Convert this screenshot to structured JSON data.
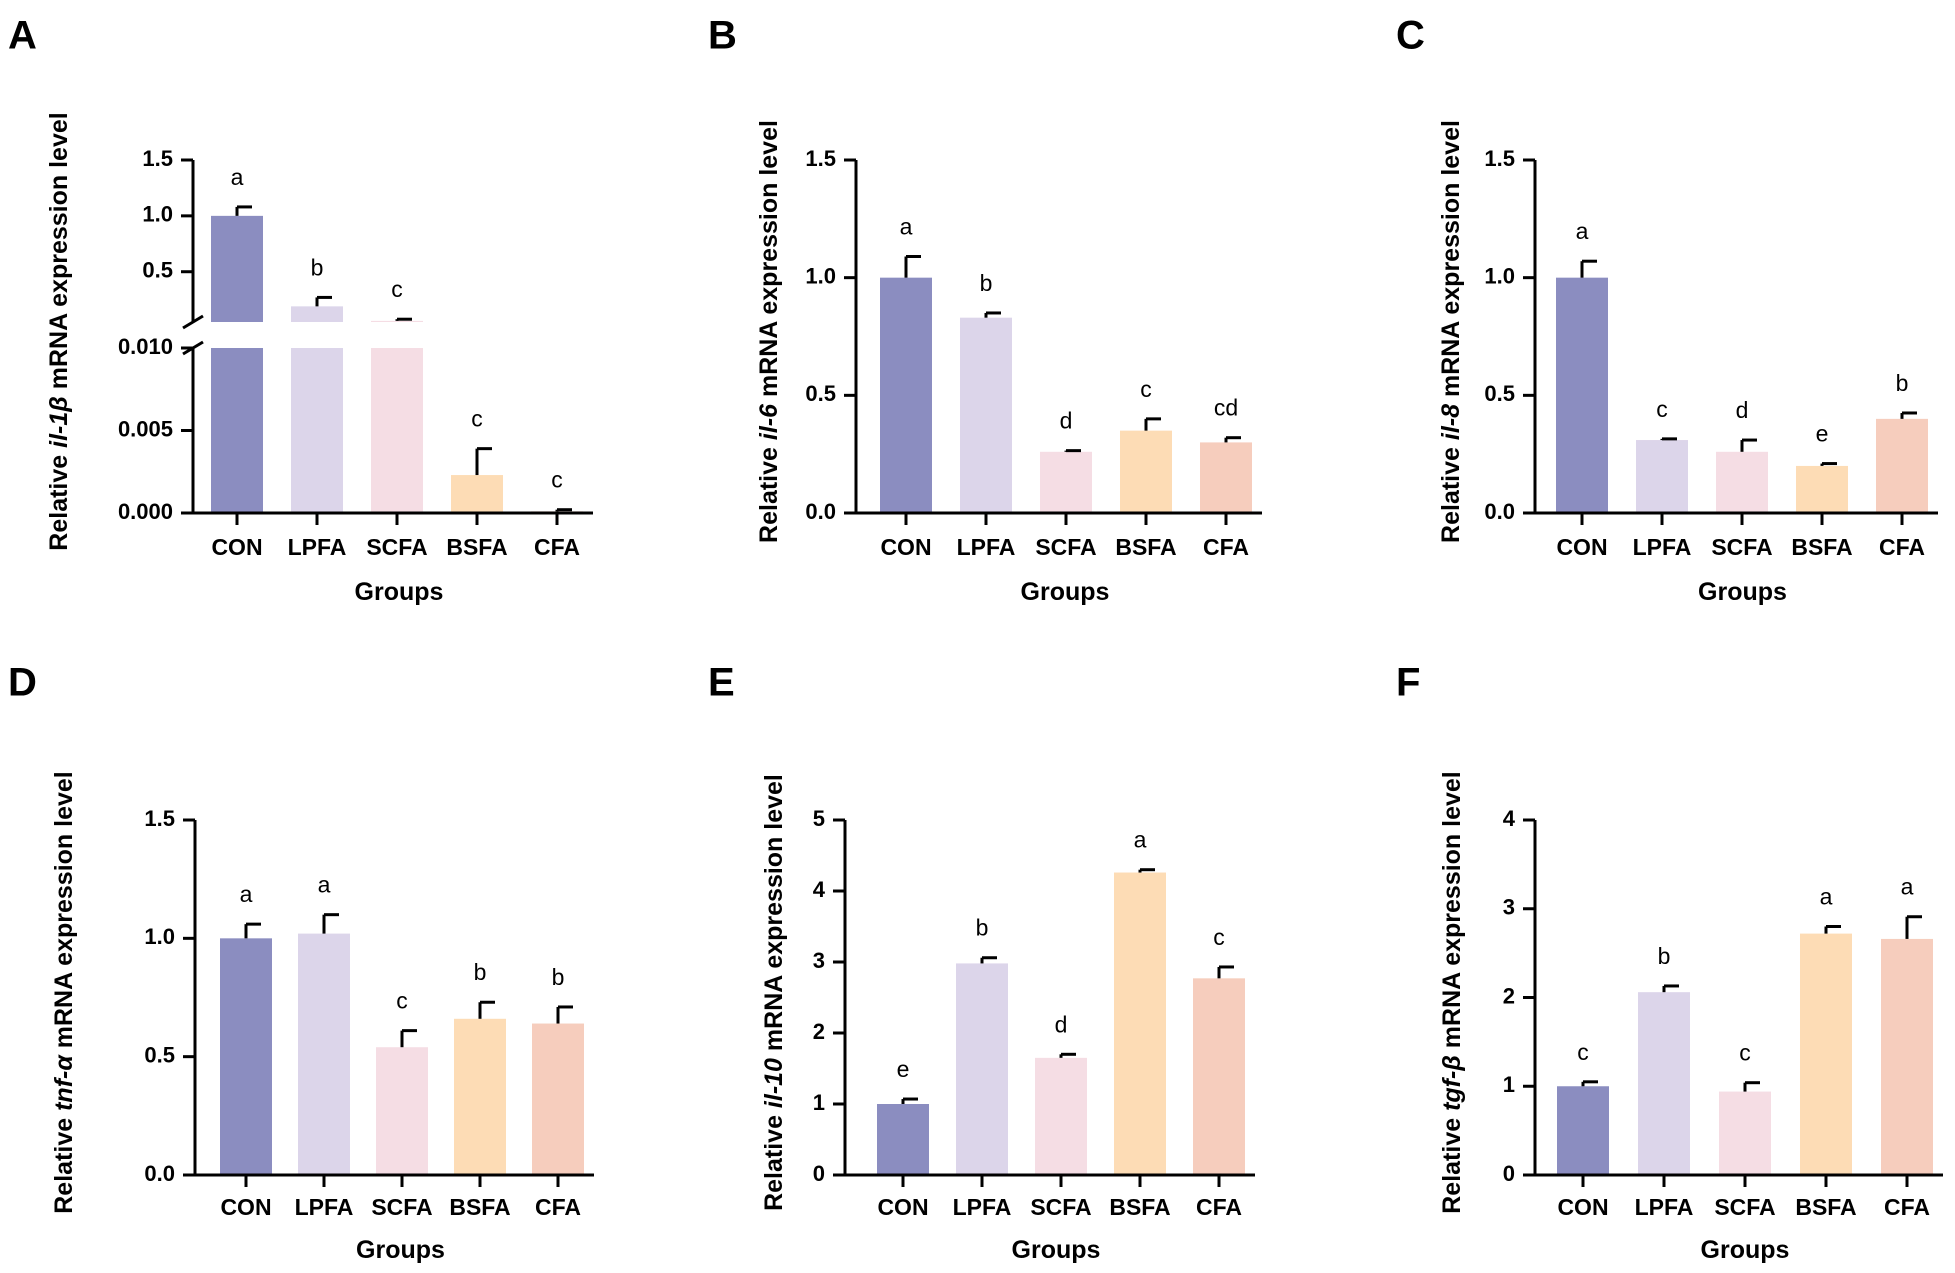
{
  "colors": {
    "CON": "#8b8dc0",
    "LPFA": "#dcd5ea",
    "SCFA": "#f5dde4",
    "BSFA": "#fddcb5",
    "CFA": "#f6cdbd",
    "axis": "#000000"
  },
  "chart_data": [
    {
      "panel": "A",
      "type": "bar",
      "broken_axis": true,
      "categories": [
        "CON",
        "LPFA",
        "SCFA",
        "BSFA",
        "CFA"
      ],
      "values": [
        1.0,
        0.19,
        0.06,
        0.0023,
        0.0001
      ],
      "errors": [
        0.08,
        0.08,
        0.015,
        0.0016,
        0.0001
      ],
      "significance": [
        "a",
        "b",
        "c",
        "c",
        "c"
      ],
      "xlabel": "Groups",
      "ylabel_prefix": "Relative ",
      "ylabel_gene": "il-1β",
      "ylabel_suffix": " mRNA expression level",
      "segments": [
        {
          "ylim": [
            0,
            0.01
          ],
          "ticks": [
            0,
            0.005,
            0.01
          ],
          "tick_labels": [
            "0.000",
            "0.005",
            "0.010"
          ]
        },
        {
          "ylim": [
            0.05,
            1.5
          ],
          "ticks": [
            0.5,
            1.0,
            1.5
          ],
          "tick_labels": [
            "0.5",
            "1.0",
            "1.5"
          ]
        }
      ]
    },
    {
      "panel": "B",
      "type": "bar",
      "categories": [
        "CON",
        "LPFA",
        "SCFA",
        "BSFA",
        "CFA"
      ],
      "values": [
        1.0,
        0.83,
        0.26,
        0.35,
        0.3
      ],
      "errors": [
        0.09,
        0.02,
        0.005,
        0.05,
        0.02
      ],
      "significance": [
        "a",
        "b",
        "d",
        "c",
        "cd"
      ],
      "xlabel": "Groups",
      "ylabel_prefix": "Relative ",
      "ylabel_gene": "il-6",
      "ylabel_suffix": " mRNA expression level",
      "ylim": [
        0,
        1.5
      ],
      "ticks": [
        0,
        0.5,
        1.0,
        1.5
      ],
      "tick_labels": [
        "0.0",
        "0.5",
        "1.0",
        "1.5"
      ]
    },
    {
      "panel": "C",
      "type": "bar",
      "categories": [
        "CON",
        "LPFA",
        "SCFA",
        "BSFA",
        "CFA"
      ],
      "values": [
        1.0,
        0.31,
        0.26,
        0.2,
        0.4
      ],
      "errors": [
        0.07,
        0.005,
        0.05,
        0.01,
        0.025
      ],
      "significance": [
        "a",
        "c",
        "d",
        "e",
        "b"
      ],
      "xlabel": "Groups",
      "ylabel_prefix": "Relative ",
      "ylabel_gene": "il-8",
      "ylabel_suffix": " mRNA expression level",
      "ylim": [
        0,
        1.5
      ],
      "ticks": [
        0,
        0.5,
        1.0,
        1.5
      ],
      "tick_labels": [
        "0.0",
        "0.5",
        "1.0",
        "1.5"
      ]
    },
    {
      "panel": "D",
      "type": "bar",
      "categories": [
        "CON",
        "LPFA",
        "SCFA",
        "BSFA",
        "CFA"
      ],
      "values": [
        1.0,
        1.02,
        0.54,
        0.66,
        0.64
      ],
      "errors": [
        0.06,
        0.08,
        0.07,
        0.07,
        0.07
      ],
      "significance": [
        "a",
        "a",
        "c",
        "b",
        "b"
      ],
      "xlabel": "Groups",
      "ylabel_prefix": "Relative ",
      "ylabel_gene": "tnf-α",
      "ylabel_suffix": " mRNA expression level",
      "ylim": [
        0,
        1.5
      ],
      "ticks": [
        0,
        0.5,
        1.0,
        1.5
      ],
      "tick_labels": [
        "0.0",
        "0.5",
        "1.0",
        "1.5"
      ]
    },
    {
      "panel": "E",
      "type": "bar",
      "categories": [
        "CON",
        "LPFA",
        "SCFA",
        "BSFA",
        "CFA"
      ],
      "values": [
        1.0,
        2.98,
        1.65,
        4.26,
        2.77
      ],
      "errors": [
        0.07,
        0.08,
        0.05,
        0.04,
        0.16
      ],
      "significance": [
        "e",
        "b",
        "d",
        "a",
        "c"
      ],
      "xlabel": "Groups",
      "ylabel_prefix": "Relative ",
      "ylabel_gene": "il-10",
      "ylabel_suffix": " mRNA expression level",
      "ylim": [
        0,
        5
      ],
      "ticks": [
        0,
        1,
        2,
        3,
        4,
        5
      ],
      "tick_labels": [
        "0",
        "1",
        "2",
        "3",
        "4",
        "5"
      ]
    },
    {
      "panel": "F",
      "type": "bar",
      "categories": [
        "CON",
        "LPFA",
        "SCFA",
        "BSFA",
        "CFA"
      ],
      "values": [
        1.0,
        2.06,
        0.94,
        2.72,
        2.66
      ],
      "errors": [
        0.05,
        0.07,
        0.1,
        0.08,
        0.25
      ],
      "significance": [
        "c",
        "b",
        "c",
        "a",
        "a"
      ],
      "xlabel": "Groups",
      "ylabel_prefix": "Relative ",
      "ylabel_gene": "tgf-β",
      "ylabel_suffix": " mRNA expression level",
      "ylim": [
        0,
        4
      ],
      "ticks": [
        0,
        1,
        2,
        3,
        4
      ],
      "tick_labels": [
        "0",
        "1",
        "2",
        "3",
        "4"
      ]
    }
  ]
}
